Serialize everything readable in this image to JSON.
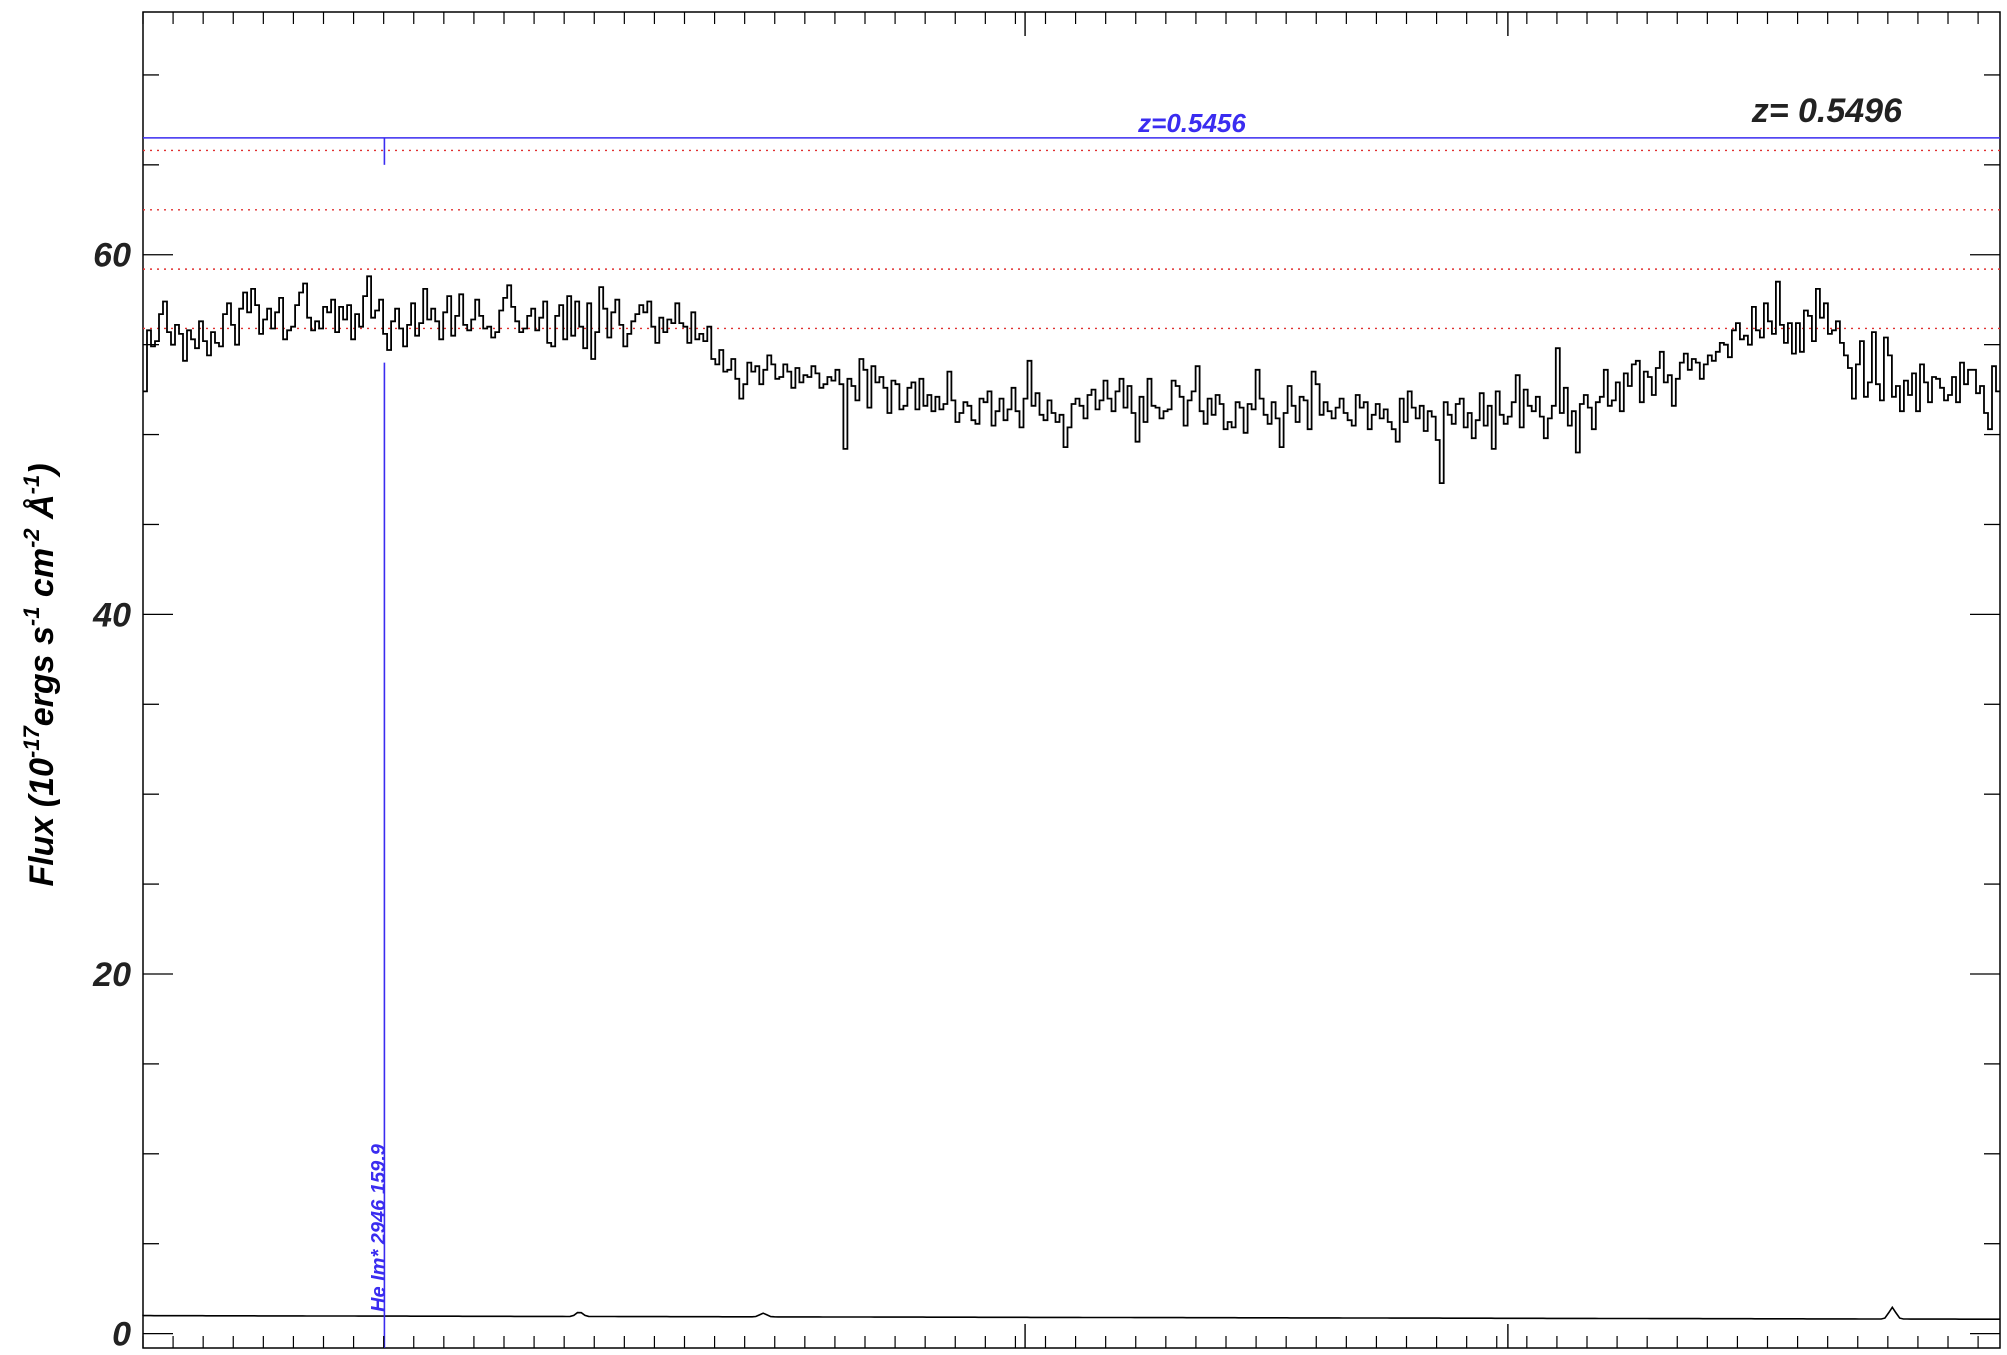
{
  "chart_data": {
    "type": "line",
    "title": "",
    "ylabel": {
      "prefix": "Flux (10",
      "exp1": "-17",
      "mid1": "ergs s",
      "exp2": "-1",
      "mid2": " cm",
      "exp3": "-2",
      "mid3": " Å",
      "exp4": "-1",
      "suffix": ")"
    },
    "xlabel": "",
    "xlim": [
      0,
      1000
    ],
    "ylim": [
      -0.8,
      73.5
    ],
    "y_ticks": [
      0,
      20,
      40,
      60
    ],
    "y_minor_step": 5,
    "x_minor_step": 16.2,
    "x_major_ticks": [
      475,
      735
    ],
    "redshift_label": "z=  0.5496",
    "redshift_label_color": "#222222",
    "system": {
      "label": "z=0.5456",
      "color": "#3a2cf0",
      "y": 66.5
    },
    "absorption_line": {
      "label": "He Im* 2946 159.9",
      "x": 130,
      "color": "#3a2cf0"
    },
    "reference_levels": {
      "color": "#e03030",
      "values": [
        65.8,
        62.5,
        59.2,
        55.9
      ]
    },
    "series": [
      {
        "role": "flux",
        "color": "#000000",
        "x_start": 0,
        "x_end": 1000,
        "values": [
          52.4,
          55.8,
          54.9,
          55.2,
          56.7,
          57.4,
          55.7,
          55.0,
          56.1,
          55.6,
          54.1,
          55.8,
          55.3,
          54.8,
          56.3,
          55.2,
          54.4,
          55.7,
          55.1,
          54.9,
          56.7,
          57.3,
          56.1,
          55.0,
          57.0,
          57.9,
          56.8,
          58.1,
          57.2,
          55.6,
          56.4,
          57.0,
          55.9,
          56.8,
          57.6,
          55.3,
          55.8,
          56.0,
          57.2,
          57.9,
          58.4,
          56.5,
          55.8,
          56.3,
          55.9,
          57.1,
          56.8,
          57.5,
          55.7,
          57.1,
          56.4,
          57.2,
          55.3,
          56.7,
          56.0,
          57.7,
          58.8,
          56.5,
          56.9,
          57.5,
          55.6,
          54.7,
          56.3,
          57.0,
          55.9,
          54.9,
          56.1,
          57.3,
          55.5,
          56.2,
          58.1,
          56.4,
          57.0,
          56.3,
          55.3,
          56.8,
          57.7,
          55.5,
          56.6,
          57.8,
          56.1,
          55.8,
          56.4,
          57.5,
          56.6,
          55.9,
          56.0,
          55.4,
          55.7,
          56.9,
          57.6,
          58.3,
          57.1,
          56.3,
          55.7,
          55.9,
          56.6,
          57.0,
          55.8,
          56.5,
          57.4,
          55.1,
          54.9,
          56.6,
          57.2,
          55.3,
          57.7,
          55.5,
          57.4,
          56.0,
          54.8,
          57.3,
          54.2,
          55.7,
          58.2,
          57.0,
          55.4,
          56.8,
          57.5,
          56.1,
          54.9,
          55.6,
          56.3,
          56.7,
          57.2,
          56.8,
          57.4,
          56.0,
          55.1,
          56.5,
          55.7,
          56.4,
          56.2,
          57.3,
          56.2,
          56.0,
          55.1,
          56.8,
          55.3,
          55.6,
          55.2,
          56.0,
          54.2,
          53.9,
          54.7,
          53.5,
          53.6,
          54.2,
          53.1,
          52.0,
          52.8,
          54.0,
          53.5,
          53.8,
          52.8,
          53.6,
          54.4,
          53.9,
          53.1,
          53.2,
          53.9,
          53.5,
          52.6,
          53.7,
          52.9,
          53.3,
          53.2,
          53.8,
          53.4,
          52.6,
          52.8,
          53.2,
          53.0,
          53.6,
          52.8,
          49.2,
          53.1,
          52.7,
          51.9,
          54.2,
          53.6,
          51.5,
          53.8,
          52.9,
          53.2,
          52.6,
          51.2,
          53.0,
          52.8,
          51.4,
          51.6,
          52.6,
          52.9,
          51.4,
          53.1,
          51.6,
          52.2,
          51.3,
          52.1,
          51.4,
          51.7,
          53.5,
          51.9,
          50.7,
          51.2,
          51.8,
          51.6,
          50.8,
          50.6,
          52.0,
          51.8,
          52.4,
          50.5,
          51.3,
          52.0,
          50.8,
          51.4,
          52.6,
          51.3,
          50.4,
          52.0,
          54.1,
          51.6,
          52.3,
          51.1,
          50.8,
          51.9,
          51.2,
          50.7,
          51.1,
          49.3,
          50.4,
          51.7,
          52.0,
          51.6,
          50.9,
          52.2,
          52.5,
          51.4,
          51.9,
          53.0,
          52.0,
          51.3,
          52.4,
          53.1,
          51.5,
          52.7,
          51.2,
          49.6,
          52.1,
          50.7,
          53.1,
          51.6,
          51.5,
          50.9,
          51.3,
          51.4,
          53.0,
          52.7,
          52.1,
          50.5,
          51.9,
          52.4,
          53.8,
          51.3,
          50.6,
          52.0,
          51.1,
          52.2,
          51.7,
          50.3,
          50.7,
          50.4,
          51.8,
          51.5,
          50.1,
          51.7,
          51.4,
          53.6,
          52.0,
          51.1,
          50.6,
          51.8,
          50.9,
          49.3,
          51.2,
          52.7,
          51.6,
          50.7,
          52.1,
          51.9,
          50.3,
          53.5,
          52.8,
          51.1,
          51.8,
          51.3,
          50.9,
          51.5,
          52.0,
          51.2,
          50.8,
          50.5,
          52.2,
          51.5,
          51.8,
          50.3,
          51.1,
          51.7,
          50.9,
          51.4,
          50.7,
          50.3,
          49.6,
          52.0,
          50.7,
          52.4,
          51.5,
          50.9,
          51.6,
          50.2,
          51.3,
          51.0,
          49.7,
          47.3,
          51.8,
          51.1,
          50.6,
          51.7,
          52.0,
          50.4,
          51.2,
          49.8,
          50.8,
          52.3,
          50.5,
          51.6,
          49.2,
          52.4,
          51.1,
          50.6,
          51.0,
          51.8,
          53.3,
          50.4,
          52.5,
          51.6,
          51.3,
          52.1,
          51.0,
          49.8,
          50.9,
          51.6,
          54.8,
          51.2,
          52.6,
          50.5,
          51.3,
          49.0,
          51.7,
          52.2,
          51.5,
          50.3,
          51.8,
          52.1,
          53.6,
          51.6,
          51.9,
          52.9,
          51.3,
          53.4,
          52.7,
          53.9,
          54.1,
          51.8,
          53.5,
          53.2,
          52.2,
          53.7,
          54.6,
          52.9,
          53.3,
          51.6,
          53.1,
          54.0,
          54.5,
          53.6,
          54.2,
          54.0,
          53.1,
          53.9,
          54.4,
          54.1,
          54.6,
          55.1,
          55.0,
          54.3,
          55.8,
          56.2,
          55.3,
          55.5,
          55.0,
          57.1,
          55.8,
          55.4,
          57.3,
          56.3,
          55.6,
          58.5,
          56.1,
          55.1,
          56.2,
          54.5,
          56.2,
          54.6,
          56.9,
          56.6,
          55.2,
          58.1,
          56.5,
          57.3,
          55.6,
          55.8,
          56.3,
          55.1,
          54.4,
          53.7,
          52.0,
          53.9,
          55.2,
          52.1,
          52.9,
          55.7,
          52.8,
          51.9,
          55.4,
          54.4,
          52.1,
          52.7,
          51.3,
          53.0,
          52.2,
          53.4,
          51.3,
          53.9,
          52.9,
          51.8,
          53.2,
          53.1,
          52.6,
          51.9,
          52.2,
          53.2,
          51.8,
          54.0,
          52.8,
          53.6,
          53.6,
          52.3,
          52.7,
          51.2,
          50.3,
          53.8,
          52.4
        ]
      },
      {
        "role": "error",
        "color": "#000000",
        "baseline": 1.0,
        "bumps": [
          {
            "x": 235,
            "height": 0.25
          },
          {
            "x": 334,
            "height": 0.2
          },
          {
            "x": 942,
            "height": 0.65
          }
        ]
      }
    ],
    "legend": "none",
    "grid": false
  }
}
